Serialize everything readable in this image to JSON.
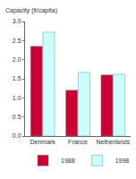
{
  "chart_data": {
    "type": "bar",
    "y_label": "Capacity (lt/capita)",
    "categories": [
      "Denmark",
      "France",
      "Netherlands"
    ],
    "series": [
      {
        "name": "1988",
        "color": "#cc0033",
        "values": [
          2.35,
          1.2,
          1.6
        ]
      },
      {
        "name": "1998",
        "color": "#ccffff",
        "values": [
          2.72,
          1.67,
          1.62
        ]
      }
    ],
    "ylim": [
      0,
      3
    ],
    "yticks": [
      {
        "value": 0,
        "label": "0.0"
      },
      0.5,
      {
        "value": 1,
        "label": "1.0"
      },
      1.5,
      {
        "value": 2,
        "label": "2.0"
      },
      2.5,
      {
        "value": 3,
        "label": "3.0"
      }
    ],
    "grid": false,
    "legend": "bottom left"
  }
}
